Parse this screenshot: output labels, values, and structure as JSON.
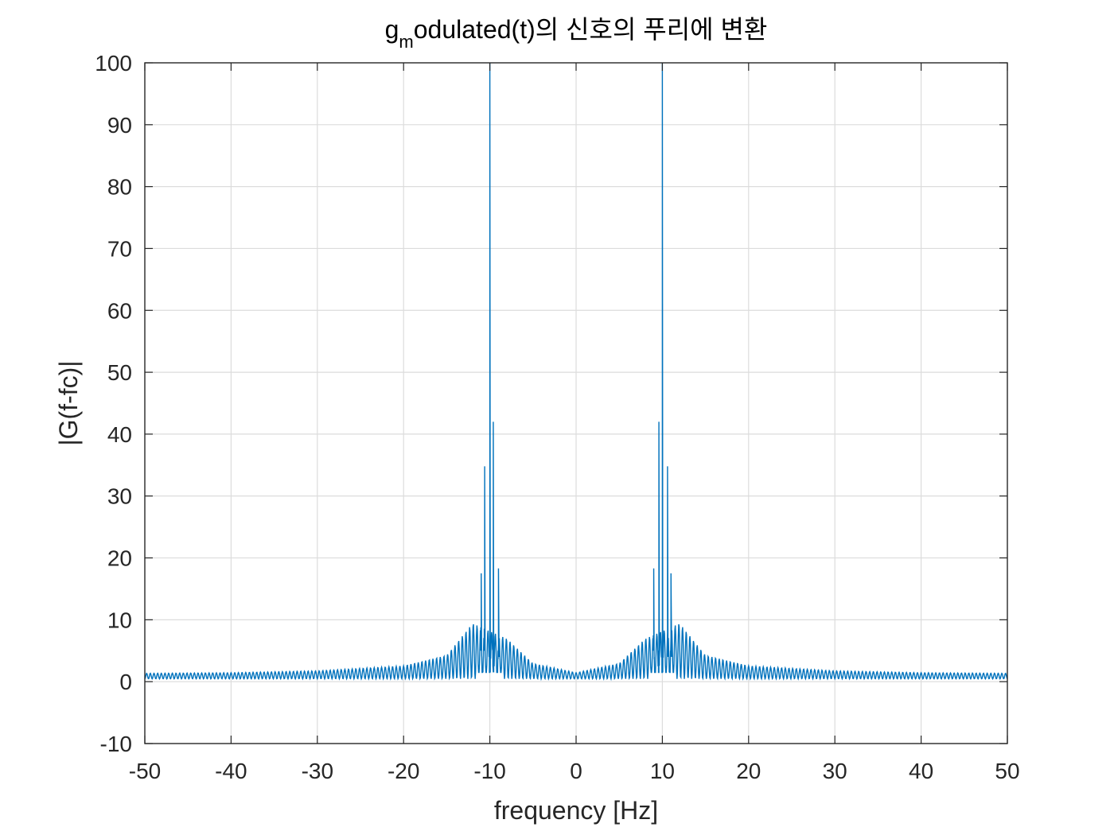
{
  "chart_data": {
    "type": "line",
    "title": "g",
    "title_subscript": "m",
    "title_rest": "odulated(t)의 신호의 푸리에 변환",
    "xlabel": "frequency [Hz]",
    "ylabel": "|G(f-fc)|",
    "xlim": [
      -50,
      50
    ],
    "ylim": [
      -10,
      100
    ],
    "xticks": [
      -50,
      -40,
      -30,
      -20,
      -10,
      0,
      10,
      20,
      30,
      40,
      50
    ],
    "yticks": [
      -10,
      0,
      10,
      20,
      30,
      40,
      50,
      60,
      70,
      80,
      90,
      100
    ],
    "xtick_labels": [
      "-50",
      "-40",
      "-30",
      "-20",
      "-10",
      "0",
      "10",
      "20",
      "30",
      "40",
      "50"
    ],
    "ytick_labels": [
      "-10",
      "0",
      "10",
      "20",
      "30",
      "40",
      "50",
      "60",
      "70",
      "80",
      "90",
      "100"
    ],
    "grid": true,
    "series": [
      {
        "color": "#0072BD",
        "peaks": [
          {
            "x": -11.0,
            "y": 17.5
          },
          {
            "x": -10.6,
            "y": 34.8
          },
          {
            "x": -10.0,
            "y": 100
          },
          {
            "x": -9.6,
            "y": 42.0
          },
          {
            "x": -9.0,
            "y": 18.3
          },
          {
            "x": 9.0,
            "y": 18.3
          },
          {
            "x": 9.6,
            "y": 42.0
          },
          {
            "x": 10.0,
            "y": 100
          },
          {
            "x": 10.6,
            "y": 34.8
          },
          {
            "x": 11.0,
            "y": 17.5
          }
        ],
        "envelope": [
          {
            "x": -50,
            "y": 0.9
          },
          {
            "x": -40,
            "y": 1.0
          },
          {
            "x": -30,
            "y": 1.3
          },
          {
            "x": -20,
            "y": 2.1
          },
          {
            "x": -15,
            "y": 3.8
          },
          {
            "x": -12,
            "y": 9.0
          },
          {
            "x": -8,
            "y": 6.5
          },
          {
            "x": -5,
            "y": 2.5
          },
          {
            "x": 0,
            "y": 1.0
          },
          {
            "x": 5,
            "y": 2.5
          },
          {
            "x": 8,
            "y": 6.5
          },
          {
            "x": 12,
            "y": 9.0
          },
          {
            "x": 15,
            "y": 3.8
          },
          {
            "x": 20,
            "y": 2.1
          },
          {
            "x": 30,
            "y": 1.3
          },
          {
            "x": 40,
            "y": 1.0
          },
          {
            "x": 50,
            "y": 0.9
          }
        ]
      }
    ]
  }
}
